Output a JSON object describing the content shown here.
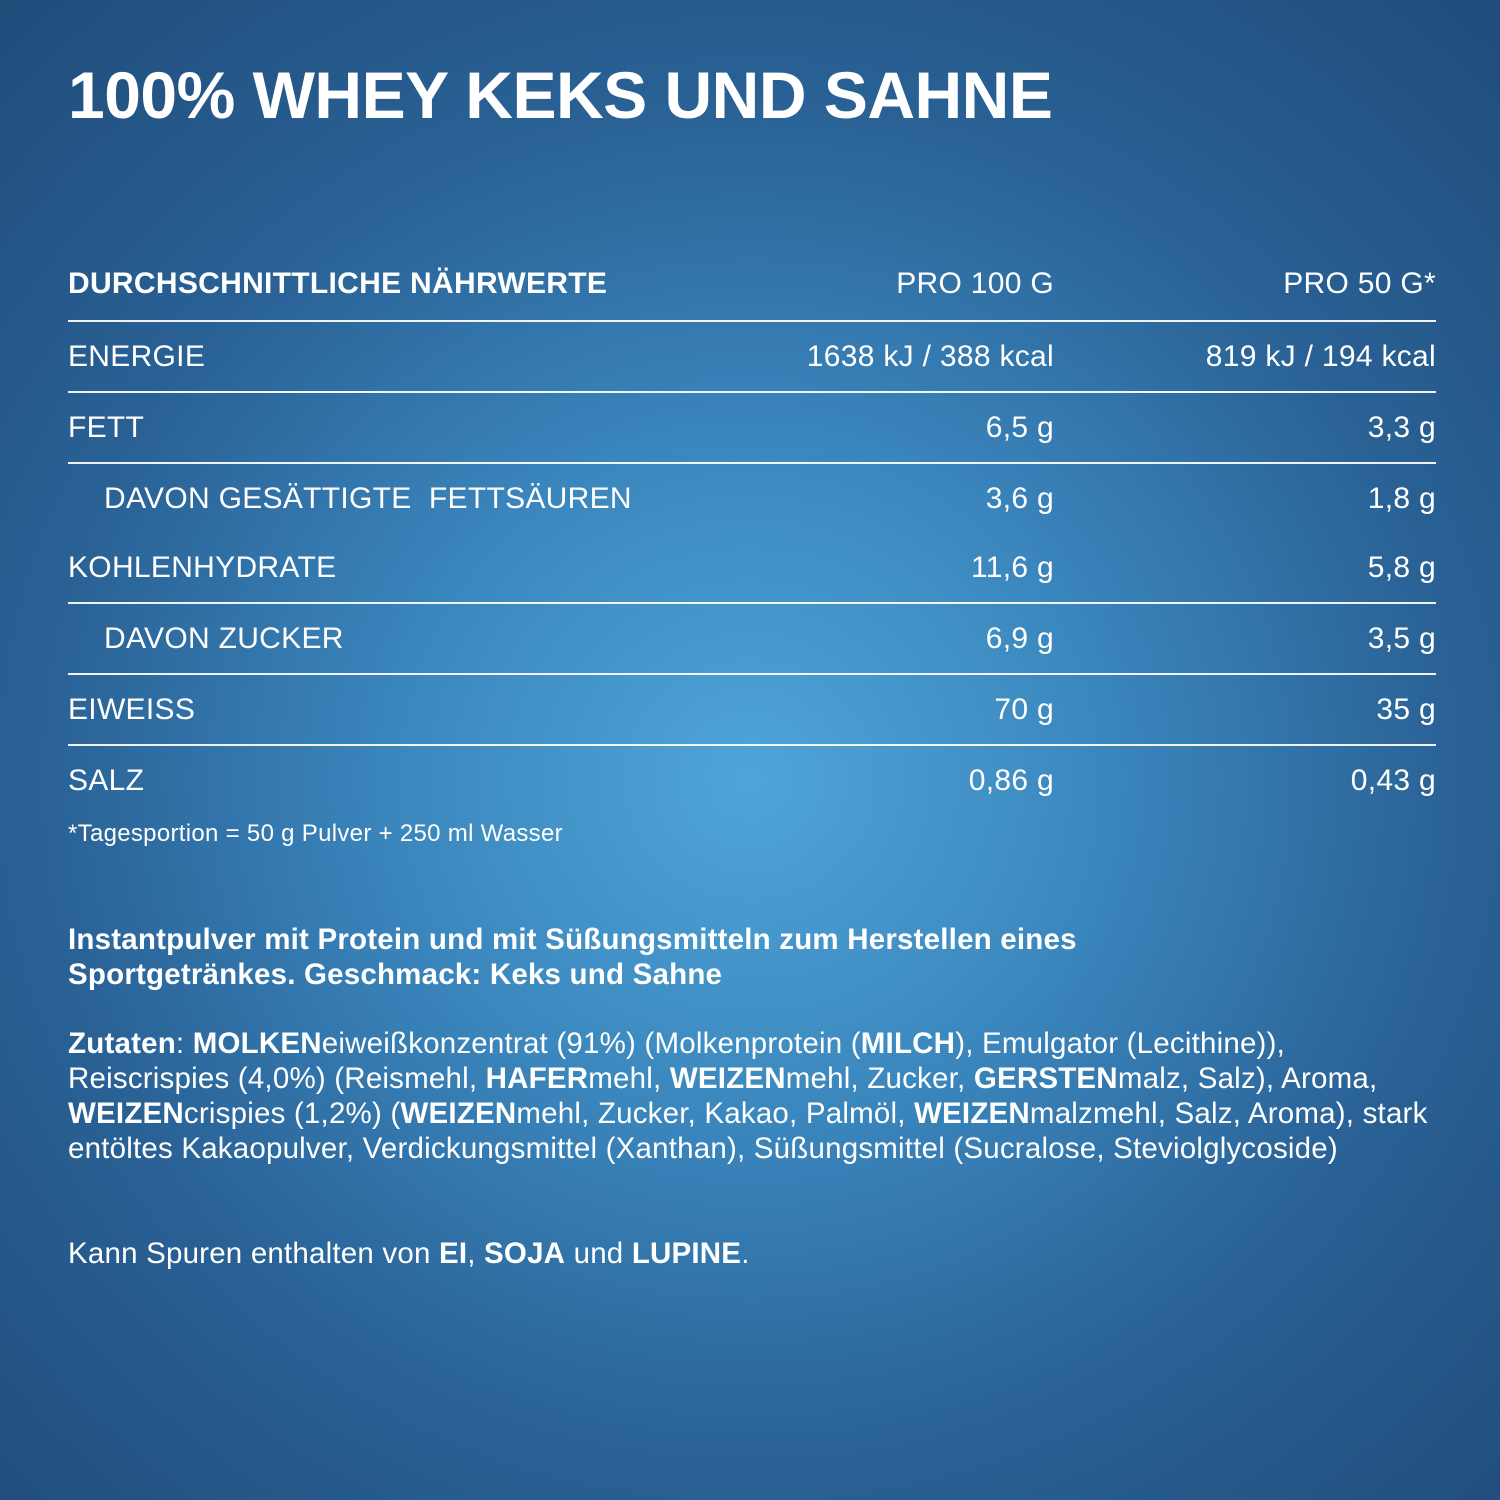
{
  "title": "100% WHEY KEKS UND SAHNE",
  "nutrition_table": {
    "header": {
      "label": "DURCHSCHNITTLICHE NÄHRWERTE",
      "per_100g": "PRO 100 G",
      "per_50g": "PRO 50 G*"
    },
    "rows": [
      {
        "label": "ENERGIE",
        "per_100g": "1638 kJ / 388 kcal",
        "per_50g": "819 kJ / 194 kcal"
      },
      {
        "label": "FETT",
        "per_100g": "6,5 g",
        "per_50g": "3,3 g"
      },
      {
        "label": "DAVON GESÄTTIGTE  FETTSÄUREN",
        "per_100g": "3,6 g",
        "per_50g": "1,8 g"
      },
      {
        "label": "KOHLENHYDRATE",
        "per_100g": "11,6 g",
        "per_50g": "5,8 g"
      },
      {
        "label": "DAVON ZUCKER",
        "per_100g": "6,9 g",
        "per_50g": "3,5 g"
      },
      {
        "label": "EIWEISS",
        "per_100g": "70 g",
        "per_50g": "35 g"
      },
      {
        "label": "SALZ",
        "per_100g": "0,86 g",
        "per_50g": "0,43 g"
      }
    ],
    "footnote": "*Tagesportion = 50 g Pulver + 250 ml Wasser"
  },
  "description": {
    "line1": "Instantpulver mit Protein und mit Süßungsmitteln zum Herstellen eines",
    "line2": "Sportgetränkes. Geschmack: Keks und Sahne"
  },
  "ingredients": [
    {
      "text": "Zutaten",
      "bold": true
    },
    {
      "text": ": ",
      "bold": false
    },
    {
      "text": "MOLKEN",
      "bold": true
    },
    {
      "text": "eiweißkonzentrat (91%) (Molkenprotein (",
      "bold": false
    },
    {
      "text": "MILCH",
      "bold": true
    },
    {
      "text": "), Emulgator (Lecithine)), Reiscrispies (4,0%) (Reismehl, ",
      "bold": false
    },
    {
      "text": "HAFER",
      "bold": true
    },
    {
      "text": "mehl, ",
      "bold": false
    },
    {
      "text": "WEIZEN",
      "bold": true
    },
    {
      "text": "mehl, Zucker, ",
      "bold": false
    },
    {
      "text": "GERSTEN",
      "bold": true
    },
    {
      "text": "malz, Salz), Aroma, ",
      "bold": false
    },
    {
      "text": "WEIZEN",
      "bold": true
    },
    {
      "text": "crispies (1,2%) (",
      "bold": false
    },
    {
      "text": "WEIZEN",
      "bold": true
    },
    {
      "text": "mehl, Zucker, Kakao, Palmöl, ",
      "bold": false
    },
    {
      "text": "WEIZEN",
      "bold": true
    },
    {
      "text": "malzmehl, Salz, Aroma), stark entöltes Kakaopulver, Verdickungsmittel (Xanthan), Süßungsmittel (Sucralose, Steviolglycoside)",
      "bold": false
    }
  ],
  "traces": [
    {
      "text": "Kann Spuren enthalten von ",
      "bold": false
    },
    {
      "text": "EI",
      "bold": true
    },
    {
      "text": ", ",
      "bold": false
    },
    {
      "text": "SOJA",
      "bold": true
    },
    {
      "text": " und ",
      "bold": false
    },
    {
      "text": "LUPINE",
      "bold": true
    },
    {
      "text": ".",
      "bold": false
    }
  ]
}
